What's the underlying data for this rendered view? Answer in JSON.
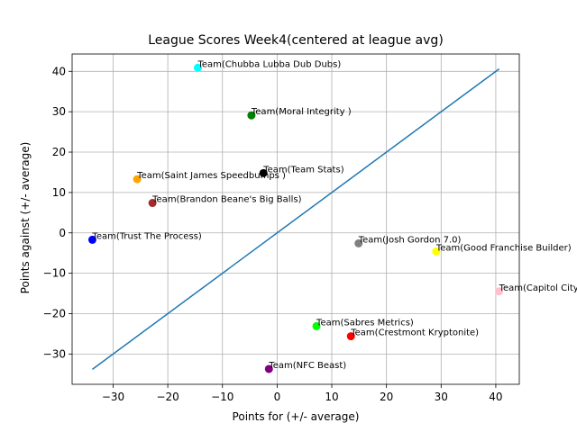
{
  "chart_data": {
    "type": "scatter",
    "title": "League Scores Week4(centered at league avg)",
    "xlabel": "Points for (+/- average)",
    "ylabel": "Points against (+/- average)",
    "xlim": [
      -37.5,
      44.3
    ],
    "ylim": [
      -37.5,
      44.3
    ],
    "xticks": [
      -30,
      -20,
      -10,
      0,
      10,
      20,
      30,
      40
    ],
    "yticks": [
      -30,
      -20,
      -10,
      0,
      10,
      20,
      30,
      40
    ],
    "grid": true,
    "reference_line": {
      "from": [
        -33.8,
        -33.8
      ],
      "to": [
        40.6,
        40.6
      ],
      "color": "#1f77b4"
    },
    "points": [
      {
        "label": "Team(Chubba Lubba Dub Dubs)",
        "x": -14.5,
        "y": 40.9,
        "color": "#00ffff"
      },
      {
        "label": "Team(Moral Integrity )",
        "x": -4.7,
        "y": 29.1,
        "color": "#008000"
      },
      {
        "label": "Team(Team Stats)",
        "x": -2.5,
        "y": 14.8,
        "color": "#000000"
      },
      {
        "label": "Team(Saint James  Speedbumps )",
        "x": -25.6,
        "y": 13.3,
        "color": "#ffa500"
      },
      {
        "label": "Team(Brandon Beane's Big Balls)",
        "x": -22.8,
        "y": 7.4,
        "color": "#a52a2a"
      },
      {
        "label": "Team(Trust The Process)",
        "x": -33.8,
        "y": -1.7,
        "color": "#0000ff"
      },
      {
        "label": "Team(Josh Gordon 7.0)",
        "x": 14.9,
        "y": -2.6,
        "color": "#808080"
      },
      {
        "label": "Team(Good Franchise Builder)",
        "x": 29.1,
        "y": -4.6,
        "color": "#ffff00"
      },
      {
        "label": "Team(Capitol City Quarterbacks)",
        "x": 40.6,
        "y": -14.5,
        "color": "#ffc0cb"
      },
      {
        "label": "Team(Sabres Metrics)",
        "x": 7.2,
        "y": -23.1,
        "color": "#00ff00"
      },
      {
        "label": "Team(Crestmont Kryptonite)",
        "x": 13.5,
        "y": -25.6,
        "color": "#ff0000"
      },
      {
        "label": "Team(NFC Beast)",
        "x": -1.5,
        "y": -33.7,
        "color": "#800080"
      }
    ]
  }
}
